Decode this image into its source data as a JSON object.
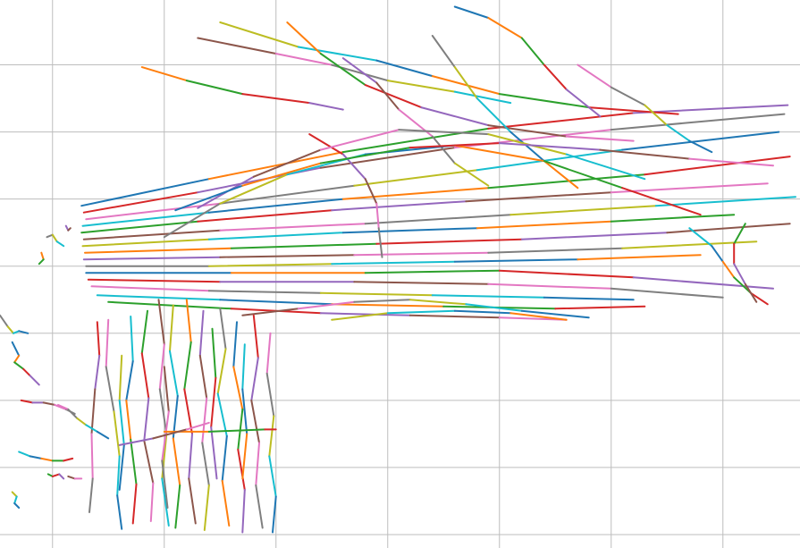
{
  "chart_data": {
    "type": "line",
    "title": "",
    "xlabel": "",
    "ylabel": "",
    "grid": true,
    "legend": "none",
    "palette": [
      "#1f77b4",
      "#ff7f0e",
      "#2ca02c",
      "#d62728",
      "#9467bd",
      "#8c564b",
      "#e377c2",
      "#7f7f7f",
      "#bcbd22",
      "#17becf"
    ],
    "grid_color": "#bdbdbd",
    "xlim": [
      -0.47,
      6.69
    ],
    "ylim": [
      -0.12,
      4.78
    ],
    "xgrid": [
      0,
      1,
      2,
      3,
      4,
      5,
      6
    ],
    "ygrid": [
      0,
      0.6,
      1.2,
      1.8,
      2.4,
      3.0,
      3.6,
      4.2,
      4.8
    ],
    "series": [
      {
        "group": "top-bundle",
        "x": [
          0.26,
          1.4,
          2.6,
          3.9,
          5.2,
          6.58
        ],
        "y": [
          2.94,
          3.18,
          3.42,
          3.63,
          3.77,
          3.84
        ]
      },
      {
        "group": "top-bundle",
        "x": [
          0.28,
          1.3,
          2.4,
          3.6,
          5.0,
          6.55
        ],
        "y": [
          2.88,
          3.06,
          3.28,
          3.46,
          3.62,
          3.76
        ]
      },
      {
        "group": "top-bundle",
        "x": [
          0.3,
          1.5,
          2.7,
          3.8,
          5.1,
          6.5
        ],
        "y": [
          2.82,
          2.96,
          3.12,
          3.26,
          3.44,
          3.6
        ]
      },
      {
        "group": "top-bundle",
        "x": [
          0.27,
          1.4,
          2.6,
          3.9,
          5.3,
          6.6
        ],
        "y": [
          2.76,
          2.88,
          3.0,
          3.1,
          3.22,
          3.38
        ]
      },
      {
        "group": "top-bundle",
        "x": [
          0.26,
          1.3,
          2.5,
          3.7,
          5.0,
          6.4
        ],
        "y": [
          2.7,
          2.8,
          2.9,
          2.98,
          3.06,
          3.14
        ]
      },
      {
        "group": "top-bundle",
        "x": [
          0.28,
          1.5,
          2.8,
          4.1,
          5.4,
          6.65
        ],
        "y": [
          2.64,
          2.72,
          2.78,
          2.86,
          2.94,
          3.02
        ]
      },
      {
        "group": "top-bundle",
        "x": [
          0.27,
          1.4,
          2.6,
          3.8,
          5.0,
          6.1
        ],
        "y": [
          2.58,
          2.64,
          2.7,
          2.74,
          2.8,
          2.86
        ]
      },
      {
        "group": "top-bundle",
        "x": [
          0.29,
          1.6,
          2.9,
          4.2,
          5.5,
          6.6
        ],
        "y": [
          2.52,
          2.56,
          2.6,
          2.64,
          2.7,
          2.78
        ]
      },
      {
        "group": "top-bundle",
        "x": [
          0.28,
          1.5,
          2.7,
          3.9,
          5.1,
          6.3
        ],
        "y": [
          2.46,
          2.48,
          2.5,
          2.52,
          2.56,
          2.62
        ]
      },
      {
        "group": "top-bundle",
        "x": [
          0.3,
          1.4,
          2.5,
          3.6,
          4.7,
          5.8
        ],
        "y": [
          2.4,
          2.4,
          2.42,
          2.44,
          2.46,
          2.5
        ]
      },
      {
        "group": "top-bundle",
        "x": [
          0.3,
          1.6,
          2.8,
          4.0,
          5.2,
          6.45
        ],
        "y": [
          2.34,
          2.34,
          2.34,
          2.36,
          2.3,
          2.2
        ]
      },
      {
        "group": "top-bundle",
        "x": [
          0.32,
          1.5,
          2.7,
          3.9,
          5.0,
          6.0
        ],
        "y": [
          2.28,
          2.26,
          2.26,
          2.24,
          2.2,
          2.12
        ]
      },
      {
        "group": "top-bundle",
        "x": [
          0.35,
          1.4,
          2.4,
          3.4,
          4.4,
          5.2
        ],
        "y": [
          2.22,
          2.18,
          2.16,
          2.14,
          2.12,
          2.1
        ]
      },
      {
        "group": "top-bundle",
        "x": [
          0.4,
          1.5,
          2.5,
          3.5,
          4.5,
          5.3
        ],
        "y": [
          2.14,
          2.1,
          2.06,
          2.04,
          2.02,
          2.04
        ]
      },
      {
        "group": "top-bundle",
        "x": [
          0.5,
          1.6,
          2.4,
          3.2,
          4.0,
          4.6
        ],
        "y": [
          2.08,
          2.02,
          1.98,
          1.96,
          1.94,
          1.92
        ]
      },
      {
        "group": "top-bundle",
        "x": [
          1.3,
          2.0,
          2.5,
          3.0,
          3.6,
          4.1
        ],
        "y": [
          4.44,
          4.3,
          4.2,
          4.06,
          3.96,
          3.86
        ]
      },
      {
        "group": "top-bundle",
        "x": [
          1.5,
          2.2,
          2.9,
          3.4,
          4.0,
          4.8,
          5.6
        ],
        "y": [
          4.58,
          4.36,
          4.24,
          4.1,
          3.94,
          3.82,
          3.76
        ]
      },
      {
        "group": "top-bundle",
        "x": [
          2.1,
          2.4,
          2.8,
          3.3,
          3.9,
          4.6,
          5.2
        ],
        "y": [
          4.58,
          4.3,
          4.02,
          3.82,
          3.66,
          3.56,
          3.52
        ]
      },
      {
        "group": "top-bundle",
        "x": [
          2.6,
          2.9,
          3.1,
          3.4,
          3.6,
          3.9
        ],
        "y": [
          4.26,
          4.04,
          3.8,
          3.56,
          3.32,
          3.12
        ]
      },
      {
        "group": "top-bundle",
        "x": [
          3.4,
          3.6,
          3.8,
          4.1,
          4.4,
          4.7
        ],
        "y": [
          4.46,
          4.18,
          3.9,
          3.6,
          3.34,
          3.1
        ]
      },
      {
        "group": "top-bundle",
        "x": [
          3.6,
          3.9,
          4.2,
          4.4,
          4.6,
          4.9
        ],
        "y": [
          4.72,
          4.62,
          4.44,
          4.2,
          3.98,
          3.74
        ]
      },
      {
        "group": "top-bundle",
        "x": [
          2.3,
          2.6,
          2.8,
          2.9,
          2.92,
          2.95
        ],
        "y": [
          3.58,
          3.4,
          3.18,
          2.96,
          2.74,
          2.48
        ]
      },
      {
        "group": "top-bundle",
        "x": [
          4.7,
          5.0,
          5.3,
          5.5,
          5.7,
          5.9
        ],
        "y": [
          4.2,
          4.0,
          3.84,
          3.66,
          3.52,
          3.42
        ]
      },
      {
        "group": "top-bundle",
        "x": [
          5.7,
          5.9,
          6.0,
          6.1,
          6.25,
          6.4
        ],
        "y": [
          2.74,
          2.58,
          2.44,
          2.3,
          2.16,
          2.06
        ]
      },
      {
        "group": "top-bundle",
        "x": [
          6.2,
          6.1,
          6.1,
          6.2,
          6.3
        ],
        "y": [
          2.78,
          2.6,
          2.42,
          2.24,
          2.08
        ]
      },
      {
        "group": "top-bundle",
        "x": [
          1.7,
          2.2,
          2.7,
          3.2,
          3.7,
          4.2,
          4.8
        ],
        "y": [
          1.96,
          2.02,
          2.08,
          2.1,
          2.06,
          2.0,
          1.94
        ]
      },
      {
        "group": "top-bundle",
        "x": [
          2.5,
          3.0,
          3.6,
          4.1,
          4.6
        ],
        "y": [
          1.92,
          1.98,
          2.0,
          1.98,
          1.92
        ]
      },
      {
        "group": "top-bundle",
        "x": [
          0.8,
          1.2,
          1.7,
          2.3,
          2.6
        ],
        "y": [
          4.18,
          4.06,
          3.94,
          3.86,
          3.8
        ]
      },
      {
        "group": "top-bundle",
        "x": [
          1.3,
          1.8,
          2.4,
          3.1,
          3.9,
          4.6,
          5.3
        ],
        "y": [
          2.92,
          3.2,
          3.44,
          3.62,
          3.58,
          3.4,
          3.18
        ]
      },
      {
        "group": "top-bundle",
        "x": [
          1.0,
          1.5,
          2.1,
          2.8,
          3.6,
          4.4,
          5.1,
          5.8
        ],
        "y": [
          2.66,
          2.96,
          3.22,
          3.4,
          3.48,
          3.34,
          3.1,
          2.86
        ]
      },
      {
        "group": "top-bundle",
        "x": [
          1.1,
          1.7,
          2.4,
          3.2,
          4.0,
          4.9,
          5.7,
          6.45
        ],
        "y": [
          2.9,
          3.12,
          3.32,
          3.46,
          3.5,
          3.44,
          3.36,
          3.3
        ]
      },
      {
        "group": "bottom-bundle",
        "x": [
          0.4,
          0.42,
          0.38,
          0.35,
          0.36,
          0.33
        ],
        "y": [
          1.9,
          1.6,
          1.3,
          0.9,
          0.5,
          0.2
        ]
      },
      {
        "group": "bottom-bundle",
        "x": [
          0.5,
          0.48,
          0.55,
          0.6,
          0.58,
          0.62
        ],
        "y": [
          1.92,
          1.5,
          1.1,
          0.7,
          0.35,
          0.05
        ]
      },
      {
        "group": "bottom-bundle",
        "x": [
          0.7,
          0.72,
          0.66,
          0.7,
          0.75,
          0.72
        ],
        "y": [
          1.95,
          1.55,
          1.2,
          0.85,
          0.45,
          0.1
        ]
      },
      {
        "group": "bottom-bundle",
        "x": [
          0.85,
          0.8,
          0.86,
          0.82,
          0.9,
          0.88
        ],
        "y": [
          2.0,
          1.62,
          1.22,
          0.84,
          0.46,
          0.12
        ]
      },
      {
        "group": "bottom-bundle",
        "x": [
          0.95,
          1.0,
          0.96,
          1.02,
          0.98,
          1.04
        ],
        "y": [
          2.1,
          1.7,
          1.3,
          0.9,
          0.5,
          0.08
        ]
      },
      {
        "group": "bottom-bundle",
        "x": [
          1.08,
          1.05,
          1.12,
          1.08,
          1.14,
          1.1
        ],
        "y": [
          2.05,
          1.64,
          1.24,
          0.86,
          0.44,
          0.06
        ]
      },
      {
        "group": "bottom-bundle",
        "x": [
          1.2,
          1.24,
          1.18,
          1.25,
          1.22,
          1.28
        ],
        "y": [
          2.1,
          1.72,
          1.3,
          0.9,
          0.5,
          0.1
        ]
      },
      {
        "group": "bottom-bundle",
        "x": [
          1.35,
          1.32,
          1.38,
          1.34,
          1.4,
          1.36
        ],
        "y": [
          2.0,
          1.6,
          1.22,
          0.82,
          0.44,
          0.04
        ]
      },
      {
        "group": "bottom-bundle",
        "x": [
          1.5,
          1.55,
          1.48,
          1.56,
          1.52,
          1.58
        ],
        "y": [
          2.02,
          1.66,
          1.26,
          0.88,
          0.48,
          0.08
        ]
      },
      {
        "group": "bottom-bundle",
        "x": [
          1.65,
          1.62,
          1.7,
          1.66,
          1.72,
          1.7
        ],
        "y": [
          1.9,
          1.5,
          1.12,
          0.76,
          0.4,
          0.02
        ]
      },
      {
        "group": "bottom-bundle",
        "x": [
          1.8,
          1.84,
          1.78,
          1.85,
          1.82,
          1.88
        ],
        "y": [
          1.96,
          1.58,
          1.2,
          0.82,
          0.44,
          0.06
        ]
      },
      {
        "group": "bottom-bundle",
        "x": [
          1.95,
          1.92,
          1.98,
          1.94,
          2.0,
          1.97
        ],
        "y": [
          1.8,
          1.44,
          1.06,
          0.7,
          0.34,
          0.02
        ]
      },
      {
        "group": "bottom-bundle",
        "x": [
          1.72,
          1.7,
          1.74,
          1.7
        ],
        "y": [
          1.7,
          1.3,
          0.9,
          0.5
        ]
      },
      {
        "group": "bottom-bundle",
        "x": [
          1.43,
          1.46,
          1.42,
          1.47
        ],
        "y": [
          1.84,
          1.4,
          0.96,
          0.5
        ]
      },
      {
        "group": "bottom-bundle",
        "x": [
          1.0,
          1.04,
          0.98,
          1.03
        ],
        "y": [
          1.5,
          1.1,
          0.66,
          0.24
        ]
      },
      {
        "group": "bottom-bundle",
        "x": [
          0.62,
          0.6,
          0.64,
          0.6
        ],
        "y": [
          1.6,
          1.2,
          0.8,
          0.4
        ]
      },
      {
        "group": "bottom-bundle",
        "x": [
          1.0,
          1.4,
          1.9,
          2.0
        ],
        "y": [
          0.92,
          0.92,
          0.94,
          0.94
        ]
      },
      {
        "group": "bottom-bundle",
        "x": [
          0.6,
          0.9,
          1.2,
          1.4
        ],
        "y": [
          0.8,
          0.86,
          0.94,
          1.0
        ]
      },
      {
        "group": "left-scatter",
        "x": [
          -0.47,
          -0.4,
          -0.35,
          -0.3,
          -0.22
        ],
        "y": [
          1.96,
          1.86,
          1.8,
          1.82,
          1.8
        ]
      },
      {
        "group": "left-scatter",
        "x": [
          -0.36,
          -0.3,
          -0.34,
          -0.26,
          -0.2,
          -0.12
        ],
        "y": [
          1.72,
          1.6,
          1.54,
          1.48,
          1.42,
          1.34
        ]
      },
      {
        "group": "left-scatter",
        "x": [
          -0.28,
          -0.18,
          -0.08,
          0.02,
          0.12,
          0.2
        ],
        "y": [
          1.2,
          1.18,
          1.18,
          1.16,
          1.12,
          1.08
        ]
      },
      {
        "group": "left-scatter",
        "x": [
          0.05,
          0.14,
          0.22,
          0.3,
          0.4,
          0.5
        ],
        "y": [
          1.16,
          1.12,
          1.04,
          0.98,
          0.92,
          0.86
        ]
      },
      {
        "group": "left-scatter",
        "x": [
          -0.3,
          -0.2,
          -0.1,
          0.0,
          0.1,
          0.18
        ],
        "y": [
          0.74,
          0.7,
          0.68,
          0.66,
          0.66,
          0.68
        ]
      },
      {
        "group": "left-scatter",
        "x": [
          -0.04,
          0.0,
          0.06,
          0.1
        ],
        "y": [
          0.54,
          0.52,
          0.54,
          0.5
        ]
      },
      {
        "group": "left-scatter",
        "x": [
          0.14,
          0.2,
          0.26
        ],
        "y": [
          0.52,
          0.5,
          0.5
        ]
      },
      {
        "group": "left-scatter",
        "x": [
          -0.36,
          -0.32,
          -0.34,
          -0.3
        ],
        "y": [
          0.38,
          0.34,
          0.28,
          0.24
        ]
      },
      {
        "group": "left-scatter",
        "x": [
          -0.1,
          -0.08,
          -0.12
        ],
        "y": [
          2.52,
          2.46,
          2.42
        ]
      },
      {
        "group": "left-scatter",
        "x": [
          0.12,
          0.14,
          0.16
        ],
        "y": [
          2.76,
          2.72,
          2.74
        ]
      },
      {
        "group": "left-scatter",
        "x": [
          -0.05,
          0.0,
          0.04,
          0.1
        ],
        "y": [
          2.66,
          2.68,
          2.62,
          2.58
        ]
      }
    ]
  }
}
